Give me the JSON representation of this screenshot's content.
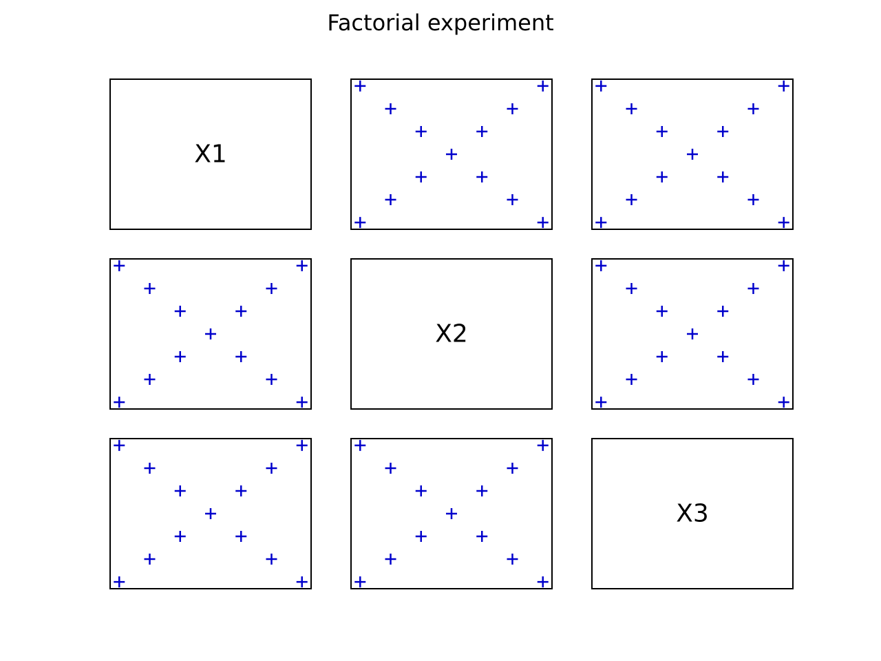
{
  "title": "Factorial experiment",
  "chart_data": {
    "type": "scatter",
    "title": "Factorial experiment",
    "layout": "3x3 scatter matrix",
    "marker": "+",
    "marker_color": "#0000cc",
    "variables": [
      "X1",
      "X2",
      "X3"
    ],
    "xlim": [
      -3.3,
      3.3
    ],
    "ylim": [
      -3.3,
      3.3
    ],
    "grid": false,
    "points": [
      [
        -3,
        3
      ],
      [
        -2,
        2
      ],
      [
        -1,
        1
      ],
      [
        0,
        0
      ],
      [
        1,
        -1
      ],
      [
        2,
        -2
      ],
      [
        3,
        -3
      ],
      [
        -3,
        -3
      ],
      [
        -2,
        -2
      ],
      [
        -1,
        -1
      ],
      [
        1,
        1
      ],
      [
        2,
        2
      ],
      [
        3,
        3
      ]
    ]
  }
}
